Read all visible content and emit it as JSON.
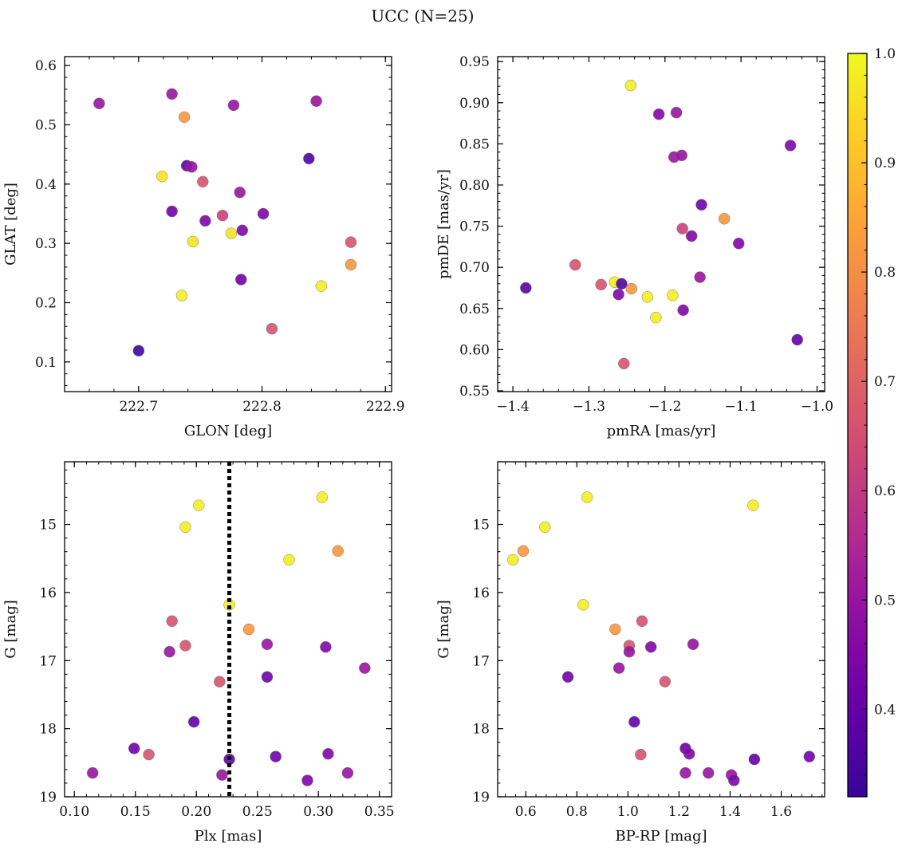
{
  "title": "UCC (N=25)",
  "colorbar": {
    "range": [
      0.32,
      1.0
    ],
    "ticks": [
      0.4,
      0.5,
      0.6,
      0.7,
      0.8,
      0.9,
      1.0
    ],
    "tick_labels": [
      "0.4",
      "0.5",
      "0.6",
      "0.7",
      "0.8",
      "0.9",
      "1.0"
    ],
    "colormap": "plasma"
  },
  "chart_data": [
    {
      "type": "scatter",
      "xlabel": "GLON [deg]",
      "ylabel": "GLAT [deg]",
      "xlim": [
        222.64,
        222.905
      ],
      "ylim": [
        0.05,
        0.615
      ],
      "xticks": [
        222.7,
        222.8,
        222.9
      ],
      "xtick_labels": [
        "222.7",
        "222.8",
        "222.9"
      ],
      "yticks": [
        0.1,
        0.2,
        0.3,
        0.4,
        0.5,
        0.6
      ],
      "ytick_labels": [
        "0.1",
        "0.2",
        "0.3",
        "0.4",
        "0.5",
        "0.6"
      ],
      "invert_y": false,
      "vline": null,
      "points": [
        {
          "x": 222.668,
          "y": 0.536,
          "c": 0.5
        },
        {
          "x": 222.727,
          "y": 0.552,
          "c": 0.5
        },
        {
          "x": 222.777,
          "y": 0.533,
          "c": 0.5
        },
        {
          "x": 222.844,
          "y": 0.54,
          "c": 0.5
        },
        {
          "x": 222.737,
          "y": 0.513,
          "c": 0.82
        },
        {
          "x": 222.719,
          "y": 0.413,
          "c": 0.96
        },
        {
          "x": 222.739,
          "y": 0.431,
          "c": 0.4
        },
        {
          "x": 222.743,
          "y": 0.429,
          "c": 0.5
        },
        {
          "x": 222.752,
          "y": 0.404,
          "c": 0.66
        },
        {
          "x": 222.838,
          "y": 0.443,
          "c": 0.36
        },
        {
          "x": 222.782,
          "y": 0.386,
          "c": 0.5
        },
        {
          "x": 222.727,
          "y": 0.354,
          "c": 0.42
        },
        {
          "x": 222.754,
          "y": 0.338,
          "c": 0.45
        },
        {
          "x": 222.768,
          "y": 0.347,
          "c": 0.62
        },
        {
          "x": 222.801,
          "y": 0.35,
          "c": 0.45
        },
        {
          "x": 222.744,
          "y": 0.303,
          "c": 0.96
        },
        {
          "x": 222.775,
          "y": 0.317,
          "c": 0.96
        },
        {
          "x": 222.784,
          "y": 0.322,
          "c": 0.45
        },
        {
          "x": 222.872,
          "y": 0.302,
          "c": 0.66
        },
        {
          "x": 222.872,
          "y": 0.264,
          "c": 0.82
        },
        {
          "x": 222.783,
          "y": 0.239,
          "c": 0.42
        },
        {
          "x": 222.848,
          "y": 0.228,
          "c": 0.98
        },
        {
          "x": 222.735,
          "y": 0.212,
          "c": 0.98
        },
        {
          "x": 222.808,
          "y": 0.156,
          "c": 0.66
        },
        {
          "x": 222.7,
          "y": 0.119,
          "c": 0.34
        }
      ]
    },
    {
      "type": "scatter",
      "xlabel": "pmRA [mas/yr]",
      "ylabel": "pmDE [mas/yr]",
      "xlim": [
        -1.42,
        -0.99
      ],
      "ylim": [
        0.549,
        0.956
      ],
      "xticks": [
        -1.4,
        -1.3,
        -1.2,
        -1.1,
        -1.0
      ],
      "xtick_labels": [
        "−1.4",
        "−1.3",
        "−1.2",
        "−1.1",
        "−1.0"
      ],
      "yticks": [
        0.55,
        0.6,
        0.65,
        0.7,
        0.75,
        0.8,
        0.85,
        0.9,
        0.95
      ],
      "ytick_labels": [
        "0.55",
        "0.60",
        "0.65",
        "0.70",
        "0.75",
        "0.80",
        "0.85",
        "0.90",
        "0.95"
      ],
      "invert_y": false,
      "vline": null,
      "points": [
        {
          "x": -1.245,
          "y": 0.921,
          "c": 0.98
        },
        {
          "x": -1.208,
          "y": 0.886,
          "c": 0.45
        },
        {
          "x": -1.185,
          "y": 0.888,
          "c": 0.5
        },
        {
          "x": -1.188,
          "y": 0.834,
          "c": 0.5
        },
        {
          "x": -1.178,
          "y": 0.836,
          "c": 0.5
        },
        {
          "x": -1.035,
          "y": 0.848,
          "c": 0.45
        },
        {
          "x": -1.152,
          "y": 0.776,
          "c": 0.42
        },
        {
          "x": -1.122,
          "y": 0.759,
          "c": 0.82
        },
        {
          "x": -1.177,
          "y": 0.747,
          "c": 0.62
        },
        {
          "x": -1.165,
          "y": 0.738,
          "c": 0.45
        },
        {
          "x": -1.103,
          "y": 0.729,
          "c": 0.45
        },
        {
          "x": -1.318,
          "y": 0.703,
          "c": 0.66
        },
        {
          "x": -1.154,
          "y": 0.688,
          "c": 0.5
        },
        {
          "x": -1.383,
          "y": 0.675,
          "c": 0.38
        },
        {
          "x": -1.284,
          "y": 0.679,
          "c": 0.66
        },
        {
          "x": -1.266,
          "y": 0.682,
          "c": 0.98
        },
        {
          "x": -1.257,
          "y": 0.68,
          "c": 0.36
        },
        {
          "x": -1.244,
          "y": 0.674,
          "c": 0.82
        },
        {
          "x": -1.261,
          "y": 0.667,
          "c": 0.45
        },
        {
          "x": -1.223,
          "y": 0.664,
          "c": 0.98
        },
        {
          "x": -1.19,
          "y": 0.666,
          "c": 0.98
        },
        {
          "x": -1.176,
          "y": 0.648,
          "c": 0.45
        },
        {
          "x": -1.212,
          "y": 0.639,
          "c": 0.98
        },
        {
          "x": -1.026,
          "y": 0.612,
          "c": 0.4
        },
        {
          "x": -1.254,
          "y": 0.583,
          "c": 0.66
        }
      ]
    },
    {
      "type": "scatter",
      "xlabel": "Plx [mas]",
      "ylabel": "G [mag]",
      "xlim": [
        0.092,
        0.36
      ],
      "ylim": [
        14.08,
        19.0
      ],
      "xticks": [
        0.1,
        0.15,
        0.2,
        0.25,
        0.3,
        0.35
      ],
      "xtick_labels": [
        "0.10",
        "0.15",
        "0.20",
        "0.25",
        "0.30",
        "0.35"
      ],
      "yticks": [
        15,
        16,
        17,
        18,
        19
      ],
      "ytick_labels": [
        "15",
        "16",
        "17",
        "18",
        "19"
      ],
      "invert_y": true,
      "vline": 0.227,
      "points": [
        {
          "x": 0.202,
          "y": 14.72,
          "c": 0.98
        },
        {
          "x": 0.303,
          "y": 14.6,
          "c": 0.98
        },
        {
          "x": 0.191,
          "y": 15.04,
          "c": 0.98
        },
        {
          "x": 0.316,
          "y": 15.39,
          "c": 0.82
        },
        {
          "x": 0.276,
          "y": 15.52,
          "c": 0.98
        },
        {
          "x": 0.227,
          "y": 16.18,
          "c": 0.98
        },
        {
          "x": 0.18,
          "y": 16.42,
          "c": 0.66
        },
        {
          "x": 0.243,
          "y": 16.54,
          "c": 0.82
        },
        {
          "x": 0.258,
          "y": 16.76,
          "c": 0.5
        },
        {
          "x": 0.191,
          "y": 16.78,
          "c": 0.66
        },
        {
          "x": 0.306,
          "y": 16.8,
          "c": 0.45
        },
        {
          "x": 0.178,
          "y": 16.87,
          "c": 0.5
        },
        {
          "x": 0.338,
          "y": 17.11,
          "c": 0.5
        },
        {
          "x": 0.258,
          "y": 17.24,
          "c": 0.42
        },
        {
          "x": 0.219,
          "y": 17.31,
          "c": 0.66
        },
        {
          "x": 0.198,
          "y": 17.9,
          "c": 0.4
        },
        {
          "x": 0.149,
          "y": 18.29,
          "c": 0.42
        },
        {
          "x": 0.161,
          "y": 18.38,
          "c": 0.66
        },
        {
          "x": 0.308,
          "y": 18.37,
          "c": 0.45
        },
        {
          "x": 0.265,
          "y": 18.41,
          "c": 0.42
        },
        {
          "x": 0.227,
          "y": 18.45,
          "c": 0.4
        },
        {
          "x": 0.115,
          "y": 18.65,
          "c": 0.5
        },
        {
          "x": 0.324,
          "y": 18.65,
          "c": 0.5
        },
        {
          "x": 0.221,
          "y": 18.68,
          "c": 0.5
        },
        {
          "x": 0.291,
          "y": 18.76,
          "c": 0.45
        }
      ]
    },
    {
      "type": "scatter",
      "xlabel": "BP-RP [mag]",
      "ylabel": "G [mag]",
      "xlim": [
        0.49,
        1.77
      ],
      "ylim": [
        14.08,
        19.0
      ],
      "xticks": [
        0.6,
        0.8,
        1.0,
        1.2,
        1.4,
        1.6
      ],
      "xtick_labels": [
        "0.6",
        "0.8",
        "1.0",
        "1.2",
        "1.4",
        "1.6"
      ],
      "yticks": [
        15,
        16,
        17,
        18,
        19
      ],
      "ytick_labels": [
        "15",
        "16",
        "17",
        "18",
        "19"
      ],
      "invert_y": true,
      "vline": null,
      "points": [
        {
          "x": 0.84,
          "y": 14.6,
          "c": 0.98
        },
        {
          "x": 1.49,
          "y": 14.72,
          "c": 0.98
        },
        {
          "x": 0.675,
          "y": 15.04,
          "c": 0.98
        },
        {
          "x": 0.59,
          "y": 15.39,
          "c": 0.82
        },
        {
          "x": 0.55,
          "y": 15.52,
          "c": 0.98
        },
        {
          "x": 0.825,
          "y": 16.18,
          "c": 0.98
        },
        {
          "x": 0.95,
          "y": 16.54,
          "c": 0.82
        },
        {
          "x": 1.055,
          "y": 16.42,
          "c": 0.66
        },
        {
          "x": 1.005,
          "y": 16.78,
          "c": 0.66
        },
        {
          "x": 1.005,
          "y": 16.87,
          "c": 0.5
        },
        {
          "x": 1.09,
          "y": 16.8,
          "c": 0.45
        },
        {
          "x": 1.255,
          "y": 16.76,
          "c": 0.5
        },
        {
          "x": 0.965,
          "y": 17.11,
          "c": 0.5
        },
        {
          "x": 0.765,
          "y": 17.24,
          "c": 0.42
        },
        {
          "x": 1.145,
          "y": 17.31,
          "c": 0.66
        },
        {
          "x": 1.025,
          "y": 17.9,
          "c": 0.4
        },
        {
          "x": 1.225,
          "y": 18.29,
          "c": 0.42
        },
        {
          "x": 1.24,
          "y": 18.37,
          "c": 0.45
        },
        {
          "x": 1.05,
          "y": 18.38,
          "c": 0.66
        },
        {
          "x": 1.71,
          "y": 18.41,
          "c": 0.42
        },
        {
          "x": 1.495,
          "y": 18.45,
          "c": 0.4
        },
        {
          "x": 1.225,
          "y": 18.65,
          "c": 0.5
        },
        {
          "x": 1.315,
          "y": 18.65,
          "c": 0.5
        },
        {
          "x": 1.405,
          "y": 18.68,
          "c": 0.5
        },
        {
          "x": 1.415,
          "y": 18.76,
          "c": 0.45
        }
      ]
    }
  ]
}
